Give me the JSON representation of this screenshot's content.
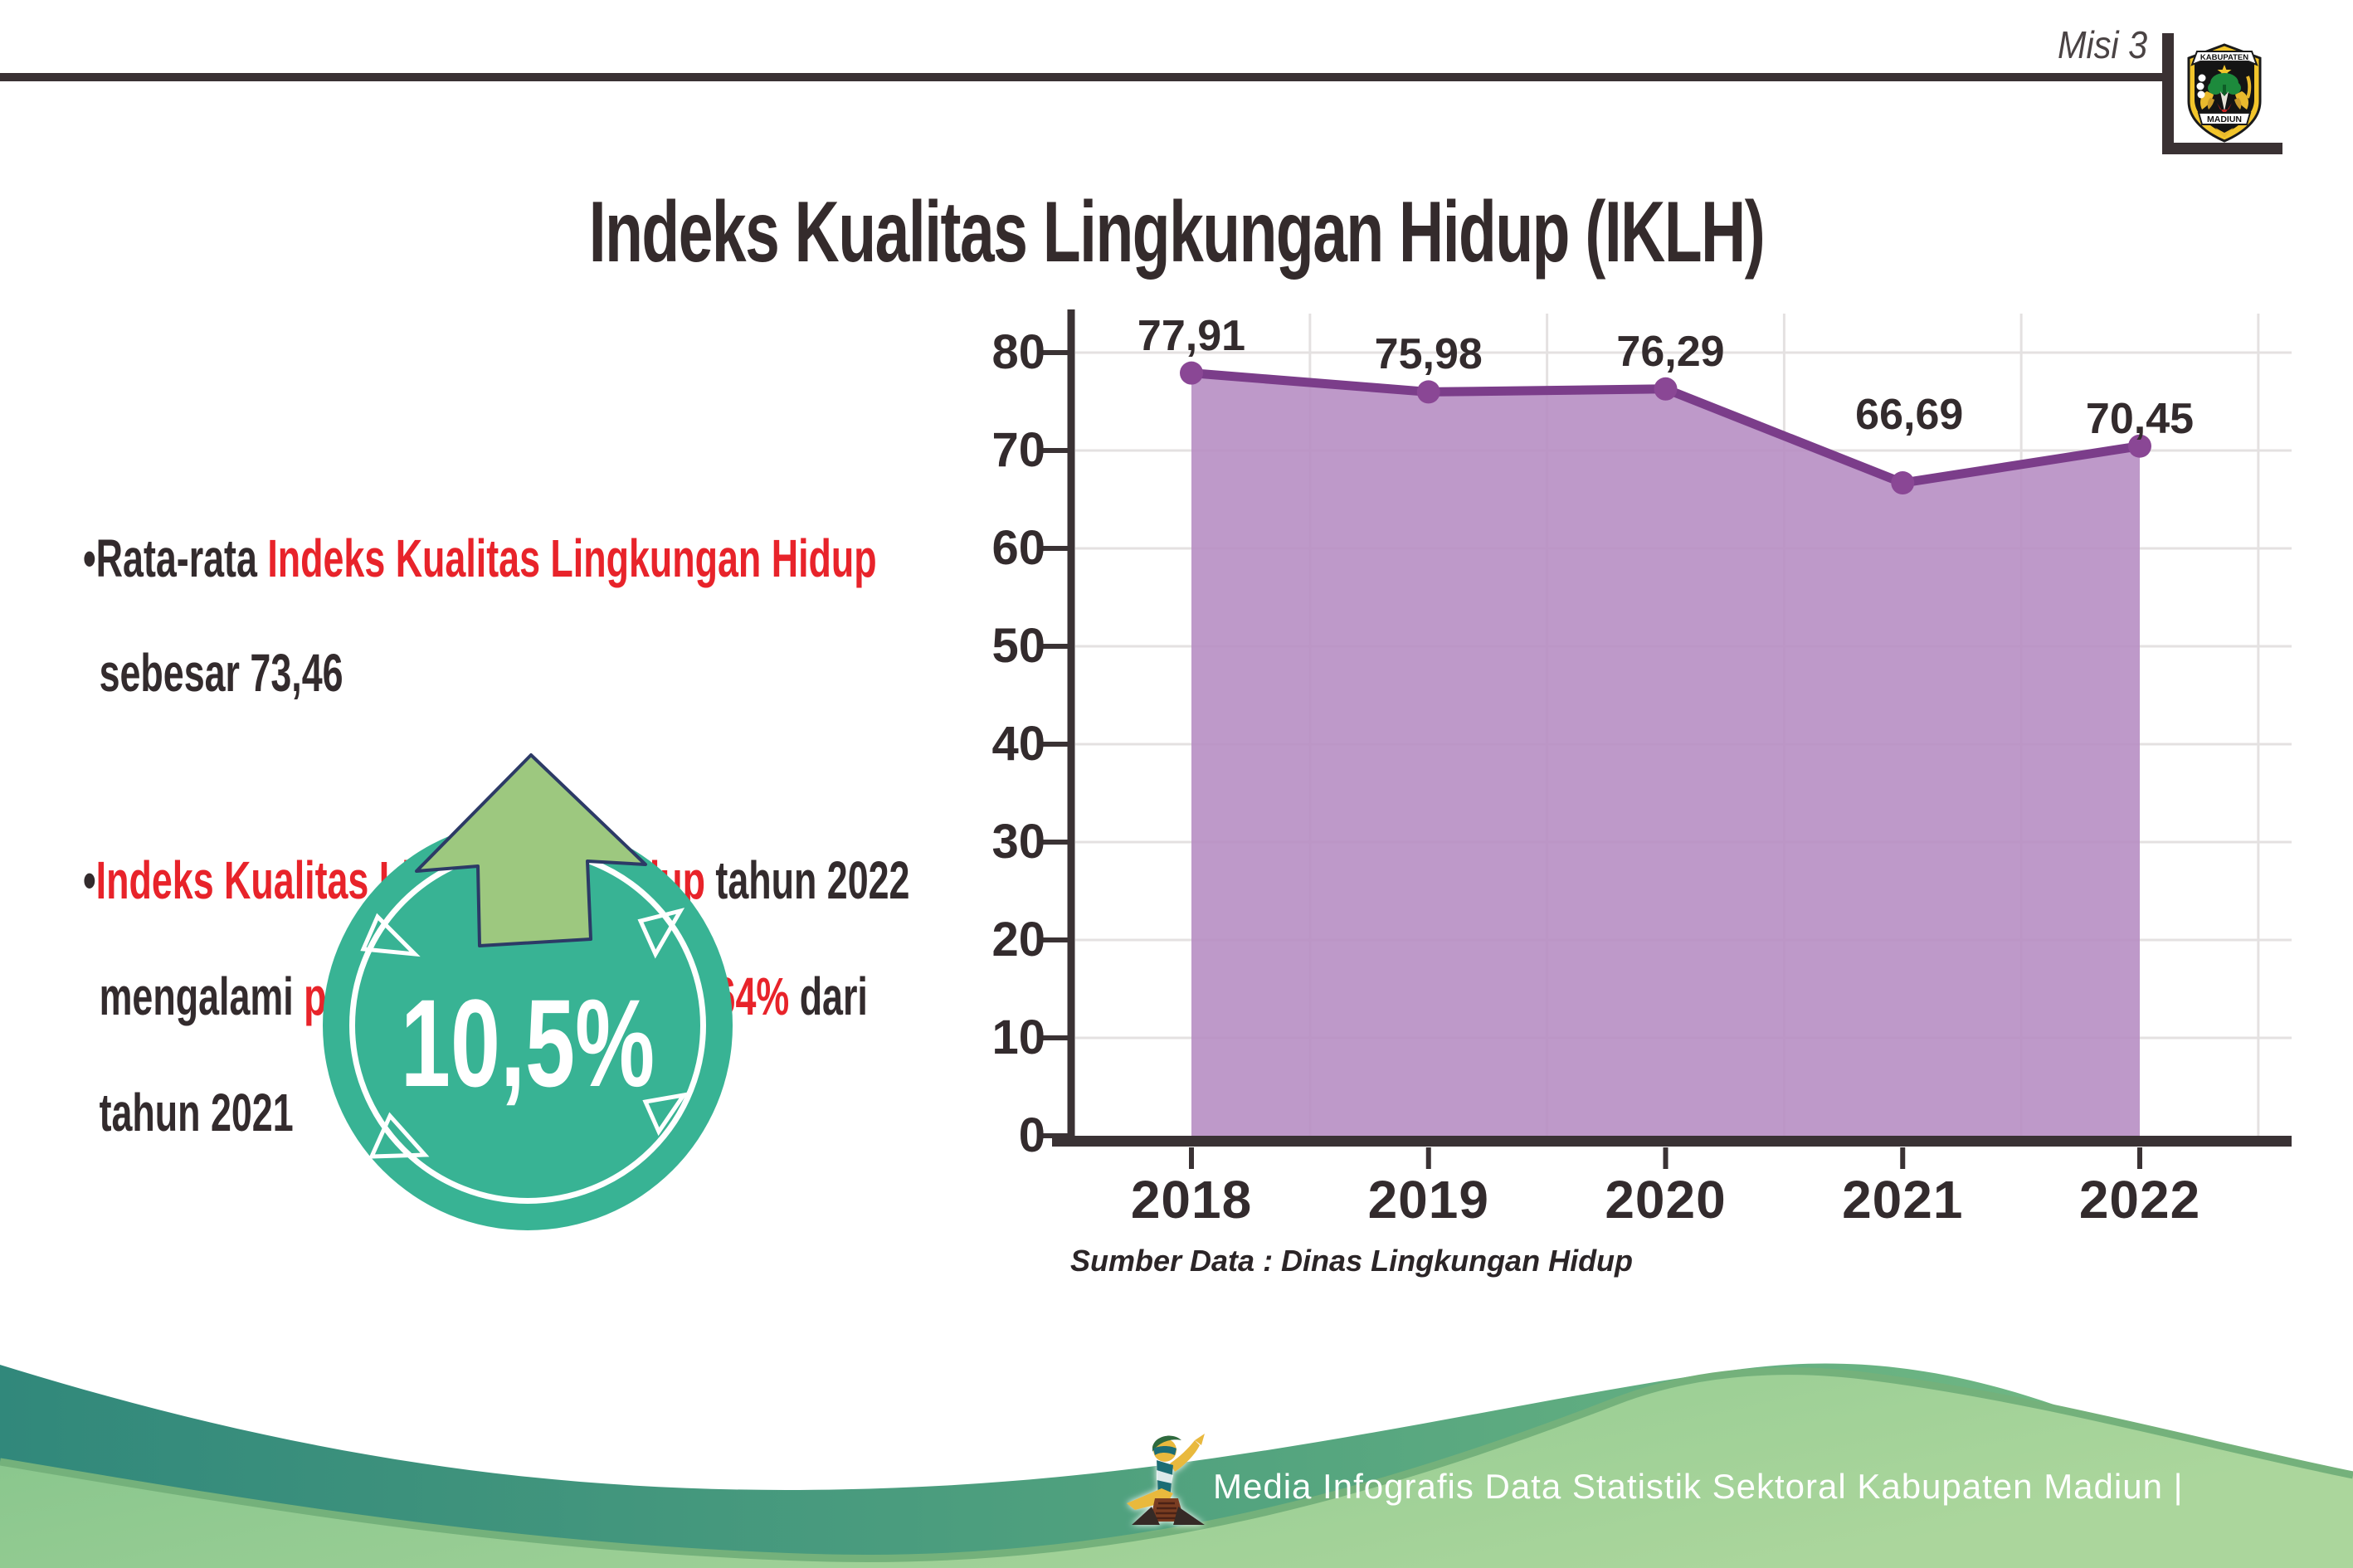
{
  "header": {
    "misi_label": "Misi 3",
    "emblem_top": "KABUPATEN",
    "emblem_bottom": "MADIUN"
  },
  "title": "Indeks Kualitas Lingkungan Hidup (IKLH)",
  "bullets": {
    "b1": {
      "l1_dark": "•Rata-rata ",
      "l1_red": "Indeks Kualitas Lingkungan Hidup",
      "l2_dark": "sebesar 73,46"
    },
    "b2": {
      "l1_bullet": "•",
      "l1_red": "Indeks Kualitas Lingkungan Hidup",
      "l1_dark": " tahun 2022",
      "l2_d1": "mengalami ",
      "l2_r1": "peningkatan",
      "l2_d2": " sebesar ",
      "l2_r2": "5,64%",
      "l2_d3": " dari",
      "l3_dark": "tahun 2021"
    }
  },
  "badge": {
    "value": "10,5%"
  },
  "chart_data": {
    "type": "area",
    "title": "",
    "categories": [
      "2018",
      "2019",
      "2020",
      "2021",
      "2022"
    ],
    "values": [
      77.91,
      75.98,
      76.29,
      66.69,
      70.45
    ],
    "point_labels": [
      "77,91",
      "75,98",
      "76,29",
      "66,69",
      "70,45"
    ],
    "yticks": [
      0,
      10,
      20,
      30,
      40,
      50,
      60,
      70,
      80
    ],
    "ylim": [
      0,
      85
    ],
    "grid": "on",
    "legend": "none",
    "source": "Sumber Data : Dinas Lingkungan Hidup",
    "colors": {
      "line": "#7b3d8a",
      "marker": "#8a4795",
      "fill": "#b78ec3",
      "grid": "#e4e1e1",
      "axis": "#3a3234",
      "label": "#332b2d"
    }
  },
  "colors": {
    "red_accent": "#e8232a",
    "dark_text": "#332b2d",
    "badge_teal": "#38b394",
    "arrow_green": "#9dc87f",
    "arrow_outline": "#2c3a66",
    "wave_teal_start": "#31887b",
    "wave_teal_end": "#79bd85",
    "wave_green_start": "#84c48b",
    "wave_green_end": "#abd69c"
  },
  "footer": {
    "text": "Media Infografis Data Statistik Sektoral Kabupaten Madiun |"
  }
}
